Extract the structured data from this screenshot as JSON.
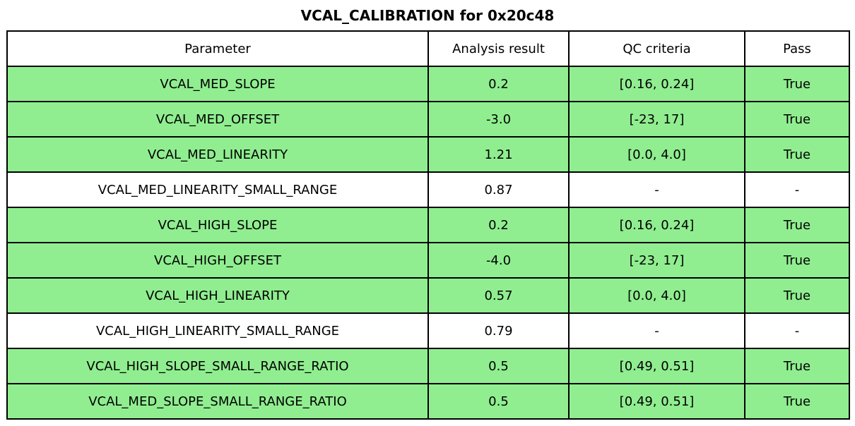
{
  "chart_data": {
    "type": "table",
    "title": "VCAL_CALIBRATION for 0x20c48",
    "columns": [
      "Parameter",
      "Analysis result",
      "QC criteria",
      "Pass"
    ],
    "rows": [
      {
        "cells": [
          "VCAL_MED_SLOPE",
          "0.2",
          "[0.16, 0.24]",
          "True"
        ],
        "highlighted": true
      },
      {
        "cells": [
          "VCAL_MED_OFFSET",
          "-3.0",
          "[-23, 17]",
          "True"
        ],
        "highlighted": true
      },
      {
        "cells": [
          "VCAL_MED_LINEARITY",
          "1.21",
          "[0.0, 4.0]",
          "True"
        ],
        "highlighted": true
      },
      {
        "cells": [
          "VCAL_MED_LINEARITY_SMALL_RANGE",
          "0.87",
          "-",
          "-"
        ],
        "highlighted": false
      },
      {
        "cells": [
          "VCAL_HIGH_SLOPE",
          "0.2",
          "[0.16, 0.24]",
          "True"
        ],
        "highlighted": true
      },
      {
        "cells": [
          "VCAL_HIGH_OFFSET",
          "-4.0",
          "[-23, 17]",
          "True"
        ],
        "highlighted": true
      },
      {
        "cells": [
          "VCAL_HIGH_LINEARITY",
          "0.57",
          "[0.0, 4.0]",
          "True"
        ],
        "highlighted": true
      },
      {
        "cells": [
          "VCAL_HIGH_LINEARITY_SMALL_RANGE",
          "0.79",
          "-",
          "-"
        ],
        "highlighted": false
      },
      {
        "cells": [
          "VCAL_HIGH_SLOPE_SMALL_RANGE_RATIO",
          "0.5",
          "[0.49, 0.51]",
          "True"
        ],
        "highlighted": true
      },
      {
        "cells": [
          "VCAL_MED_SLOPE_SMALL_RANGE_RATIO",
          "0.5",
          "[0.49, 0.51]",
          "True"
        ],
        "highlighted": true
      }
    ],
    "colors": {
      "pass_row_bg": "#90EE90",
      "no_qc_row_bg": "#FFFFFF",
      "header_bg": "#FFFFFF",
      "border": "#000000",
      "text": "#000000"
    },
    "layout": {
      "grid": "on",
      "title_position": "top-center"
    }
  }
}
